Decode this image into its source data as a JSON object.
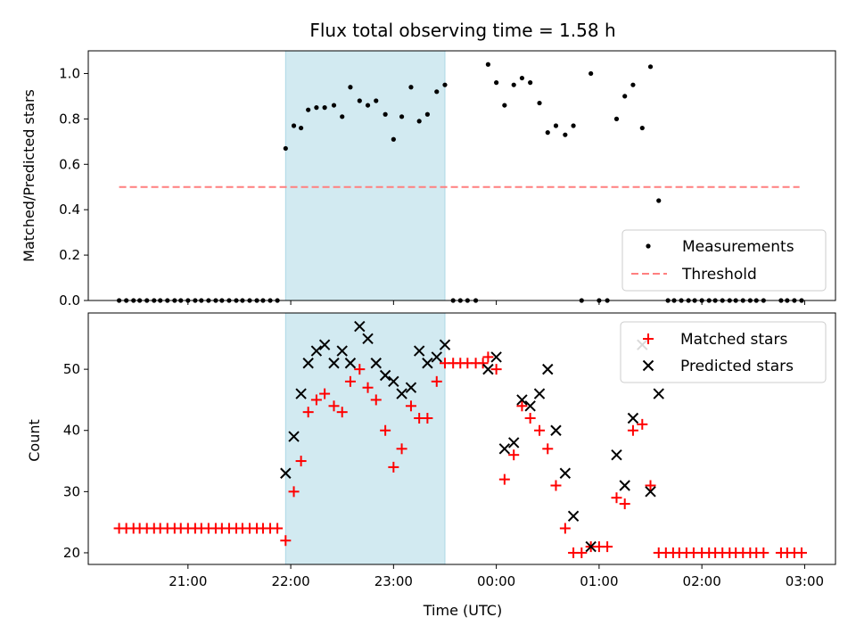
{
  "chart_data": {
    "title": "Flux total observing time = 1.58 h",
    "xlabel": "Time (UTC)",
    "xlim_hours": [
      20.03,
      27.3
    ],
    "x_ticks": [
      {
        "h": 21,
        "label": "21:00"
      },
      {
        "h": 22,
        "label": "22:00"
      },
      {
        "h": 23,
        "label": "23:00"
      },
      {
        "h": 24,
        "label": "00:00"
      },
      {
        "h": 25,
        "label": "01:00"
      },
      {
        "h": 26,
        "label": "02:00"
      },
      {
        "h": 27,
        "label": "03:00"
      }
    ],
    "shaded_span_hours": [
      21.95,
      23.5
    ],
    "shade_color": "#add8e6",
    "ratio_panel": {
      "type": "scatter",
      "ylabel": "Matched/Predicted stars",
      "ylim": [
        0,
        1.1
      ],
      "y_ticks": [
        "0.0",
        "0.2",
        "0.4",
        "0.6",
        "0.8",
        "1.0"
      ],
      "threshold": {
        "name": "Threshold",
        "value": 0.5,
        "x_range": [
          20.33,
          26.95
        ],
        "color": "#ff7f7f"
      },
      "legend": [
        "Measurements",
        "Threshold"
      ],
      "legend_position": "lower-right",
      "measurements_name": "Measurements",
      "measurements": [
        [
          20.33,
          0
        ],
        [
          20.4,
          0
        ],
        [
          20.47,
          0
        ],
        [
          20.53,
          0
        ],
        [
          20.6,
          0
        ],
        [
          20.67,
          0
        ],
        [
          20.73,
          0
        ],
        [
          20.8,
          0
        ],
        [
          20.87,
          0
        ],
        [
          20.93,
          0
        ],
        [
          21.0,
          0
        ],
        [
          21.07,
          0
        ],
        [
          21.13,
          0
        ],
        [
          21.2,
          0
        ],
        [
          21.27,
          0
        ],
        [
          21.33,
          0
        ],
        [
          21.4,
          0
        ],
        [
          21.47,
          0
        ],
        [
          21.53,
          0
        ],
        [
          21.6,
          0
        ],
        [
          21.67,
          0
        ],
        [
          21.73,
          0
        ],
        [
          21.8,
          0
        ],
        [
          21.87,
          0
        ],
        [
          21.95,
          0.67
        ],
        [
          22.03,
          0.77
        ],
        [
          22.1,
          0.76
        ],
        [
          22.17,
          0.84
        ],
        [
          22.25,
          0.85
        ],
        [
          22.33,
          0.85
        ],
        [
          22.42,
          0.86
        ],
        [
          22.5,
          0.81
        ],
        [
          22.58,
          0.94
        ],
        [
          22.67,
          0.88
        ],
        [
          22.75,
          0.86
        ],
        [
          22.83,
          0.88
        ],
        [
          22.92,
          0.82
        ],
        [
          23.0,
          0.71
        ],
        [
          23.08,
          0.81
        ],
        [
          23.17,
          0.94
        ],
        [
          23.25,
          0.79
        ],
        [
          23.33,
          0.82
        ],
        [
          23.42,
          0.92
        ],
        [
          23.5,
          0.95
        ],
        [
          23.58,
          0
        ],
        [
          23.65,
          0
        ],
        [
          23.72,
          0
        ],
        [
          23.8,
          0
        ],
        [
          23.92,
          1.04
        ],
        [
          24.0,
          0.96
        ],
        [
          24.08,
          0.86
        ],
        [
          24.17,
          0.95
        ],
        [
          24.25,
          0.98
        ],
        [
          24.33,
          0.96
        ],
        [
          24.42,
          0.87
        ],
        [
          24.5,
          0.74
        ],
        [
          24.58,
          0.77
        ],
        [
          24.67,
          0.73
        ],
        [
          24.75,
          0.77
        ],
        [
          24.83,
          0
        ],
        [
          24.92,
          1.0
        ],
        [
          25.0,
          0
        ],
        [
          25.08,
          0
        ],
        [
          25.17,
          0.8
        ],
        [
          25.25,
          0.9
        ],
        [
          25.33,
          0.95
        ],
        [
          25.42,
          0.76
        ],
        [
          25.5,
          1.03
        ],
        [
          25.58,
          0.44
        ],
        [
          25.67,
          0
        ],
        [
          25.73,
          0
        ],
        [
          25.8,
          0
        ],
        [
          25.87,
          0
        ],
        [
          25.93,
          0
        ],
        [
          26.0,
          0
        ],
        [
          26.07,
          0
        ],
        [
          26.13,
          0
        ],
        [
          26.2,
          0
        ],
        [
          26.27,
          0
        ],
        [
          26.33,
          0
        ],
        [
          26.4,
          0
        ],
        [
          26.47,
          0
        ],
        [
          26.53,
          0
        ],
        [
          26.6,
          0
        ],
        [
          26.77,
          0
        ],
        [
          26.83,
          0
        ],
        [
          26.9,
          0
        ],
        [
          26.97,
          0
        ]
      ]
    },
    "count_panel": {
      "type": "scatter",
      "ylabel": "Count",
      "ylim": [
        18.1,
        59.2
      ],
      "y_ticks": [
        20,
        30,
        40,
        50
      ],
      "legend": [
        "Matched stars",
        "Predicted stars"
      ],
      "legend_position": "upper-right",
      "series": [
        {
          "name": "Matched stars",
          "marker": "plus",
          "color": "#ff0000",
          "points": [
            [
              20.33,
              24
            ],
            [
              20.4,
              24
            ],
            [
              20.47,
              24
            ],
            [
              20.53,
              24
            ],
            [
              20.6,
              24
            ],
            [
              20.67,
              24
            ],
            [
              20.73,
              24
            ],
            [
              20.8,
              24
            ],
            [
              20.87,
              24
            ],
            [
              20.93,
              24
            ],
            [
              21.0,
              24
            ],
            [
              21.07,
              24
            ],
            [
              21.13,
              24
            ],
            [
              21.2,
              24
            ],
            [
              21.27,
              24
            ],
            [
              21.33,
              24
            ],
            [
              21.4,
              24
            ],
            [
              21.47,
              24
            ],
            [
              21.53,
              24
            ],
            [
              21.6,
              24
            ],
            [
              21.67,
              24
            ],
            [
              21.73,
              24
            ],
            [
              21.8,
              24
            ],
            [
              21.87,
              24
            ],
            [
              21.95,
              22
            ],
            [
              22.03,
              30
            ],
            [
              22.1,
              35
            ],
            [
              22.17,
              43
            ],
            [
              22.25,
              45
            ],
            [
              22.33,
              46
            ],
            [
              22.42,
              44
            ],
            [
              22.5,
              43
            ],
            [
              22.58,
              48
            ],
            [
              22.67,
              50
            ],
            [
              22.75,
              47
            ],
            [
              22.83,
              45
            ],
            [
              22.92,
              40
            ],
            [
              23.0,
              34
            ],
            [
              23.08,
              37
            ],
            [
              23.17,
              44
            ],
            [
              23.25,
              42
            ],
            [
              23.33,
              42
            ],
            [
              23.42,
              48
            ],
            [
              23.5,
              51
            ],
            [
              23.58,
              51
            ],
            [
              23.65,
              51
            ],
            [
              23.72,
              51
            ],
            [
              23.8,
              51
            ],
            [
              23.87,
              51
            ],
            [
              23.92,
              52
            ],
            [
              24.0,
              50
            ],
            [
              24.08,
              32
            ],
            [
              24.17,
              36
            ],
            [
              24.25,
              44
            ],
            [
              24.33,
              42
            ],
            [
              24.42,
              40
            ],
            [
              24.5,
              37
            ],
            [
              24.58,
              31
            ],
            [
              24.67,
              24
            ],
            [
              24.75,
              20
            ],
            [
              24.83,
              20
            ],
            [
              24.92,
              21
            ],
            [
              25.0,
              21
            ],
            [
              25.08,
              21
            ],
            [
              25.17,
              29
            ],
            [
              25.25,
              28
            ],
            [
              25.33,
              40
            ],
            [
              25.42,
              41
            ],
            [
              25.5,
              31
            ],
            [
              25.58,
              20
            ],
            [
              25.65,
              20
            ],
            [
              25.72,
              20
            ],
            [
              25.78,
              20
            ],
            [
              25.85,
              20
            ],
            [
              25.92,
              20
            ],
            [
              26.0,
              20
            ],
            [
              26.07,
              20
            ],
            [
              26.13,
              20
            ],
            [
              26.2,
              20
            ],
            [
              26.27,
              20
            ],
            [
              26.33,
              20
            ],
            [
              26.4,
              20
            ],
            [
              26.47,
              20
            ],
            [
              26.53,
              20
            ],
            [
              26.6,
              20
            ],
            [
              26.77,
              20
            ],
            [
              26.83,
              20
            ],
            [
              26.9,
              20
            ],
            [
              26.97,
              20
            ]
          ]
        },
        {
          "name": "Predicted stars",
          "marker": "x",
          "color": "#000000",
          "points": [
            [
              21.95,
              33
            ],
            [
              22.03,
              39
            ],
            [
              22.1,
              46
            ],
            [
              22.17,
              51
            ],
            [
              22.25,
              53
            ],
            [
              22.33,
              54
            ],
            [
              22.42,
              51
            ],
            [
              22.5,
              53
            ],
            [
              22.58,
              51
            ],
            [
              22.67,
              57
            ],
            [
              22.75,
              55
            ],
            [
              22.83,
              51
            ],
            [
              22.92,
              49
            ],
            [
              23.0,
              48
            ],
            [
              23.08,
              46
            ],
            [
              23.17,
              47
            ],
            [
              23.25,
              53
            ],
            [
              23.33,
              51
            ],
            [
              23.42,
              52
            ],
            [
              23.5,
              54
            ],
            [
              23.92,
              50
            ],
            [
              24.0,
              52
            ],
            [
              24.08,
              37
            ],
            [
              24.17,
              38
            ],
            [
              24.25,
              45
            ],
            [
              24.33,
              44
            ],
            [
              24.42,
              46
            ],
            [
              24.5,
              50
            ],
            [
              24.58,
              40
            ],
            [
              24.67,
              33
            ],
            [
              24.75,
              26
            ],
            [
              24.92,
              21
            ],
            [
              25.17,
              36
            ],
            [
              25.25,
              31
            ],
            [
              25.33,
              42
            ],
            [
              25.42,
              54
            ],
            [
              25.5,
              30
            ],
            [
              25.58,
              46
            ]
          ]
        }
      ]
    }
  }
}
